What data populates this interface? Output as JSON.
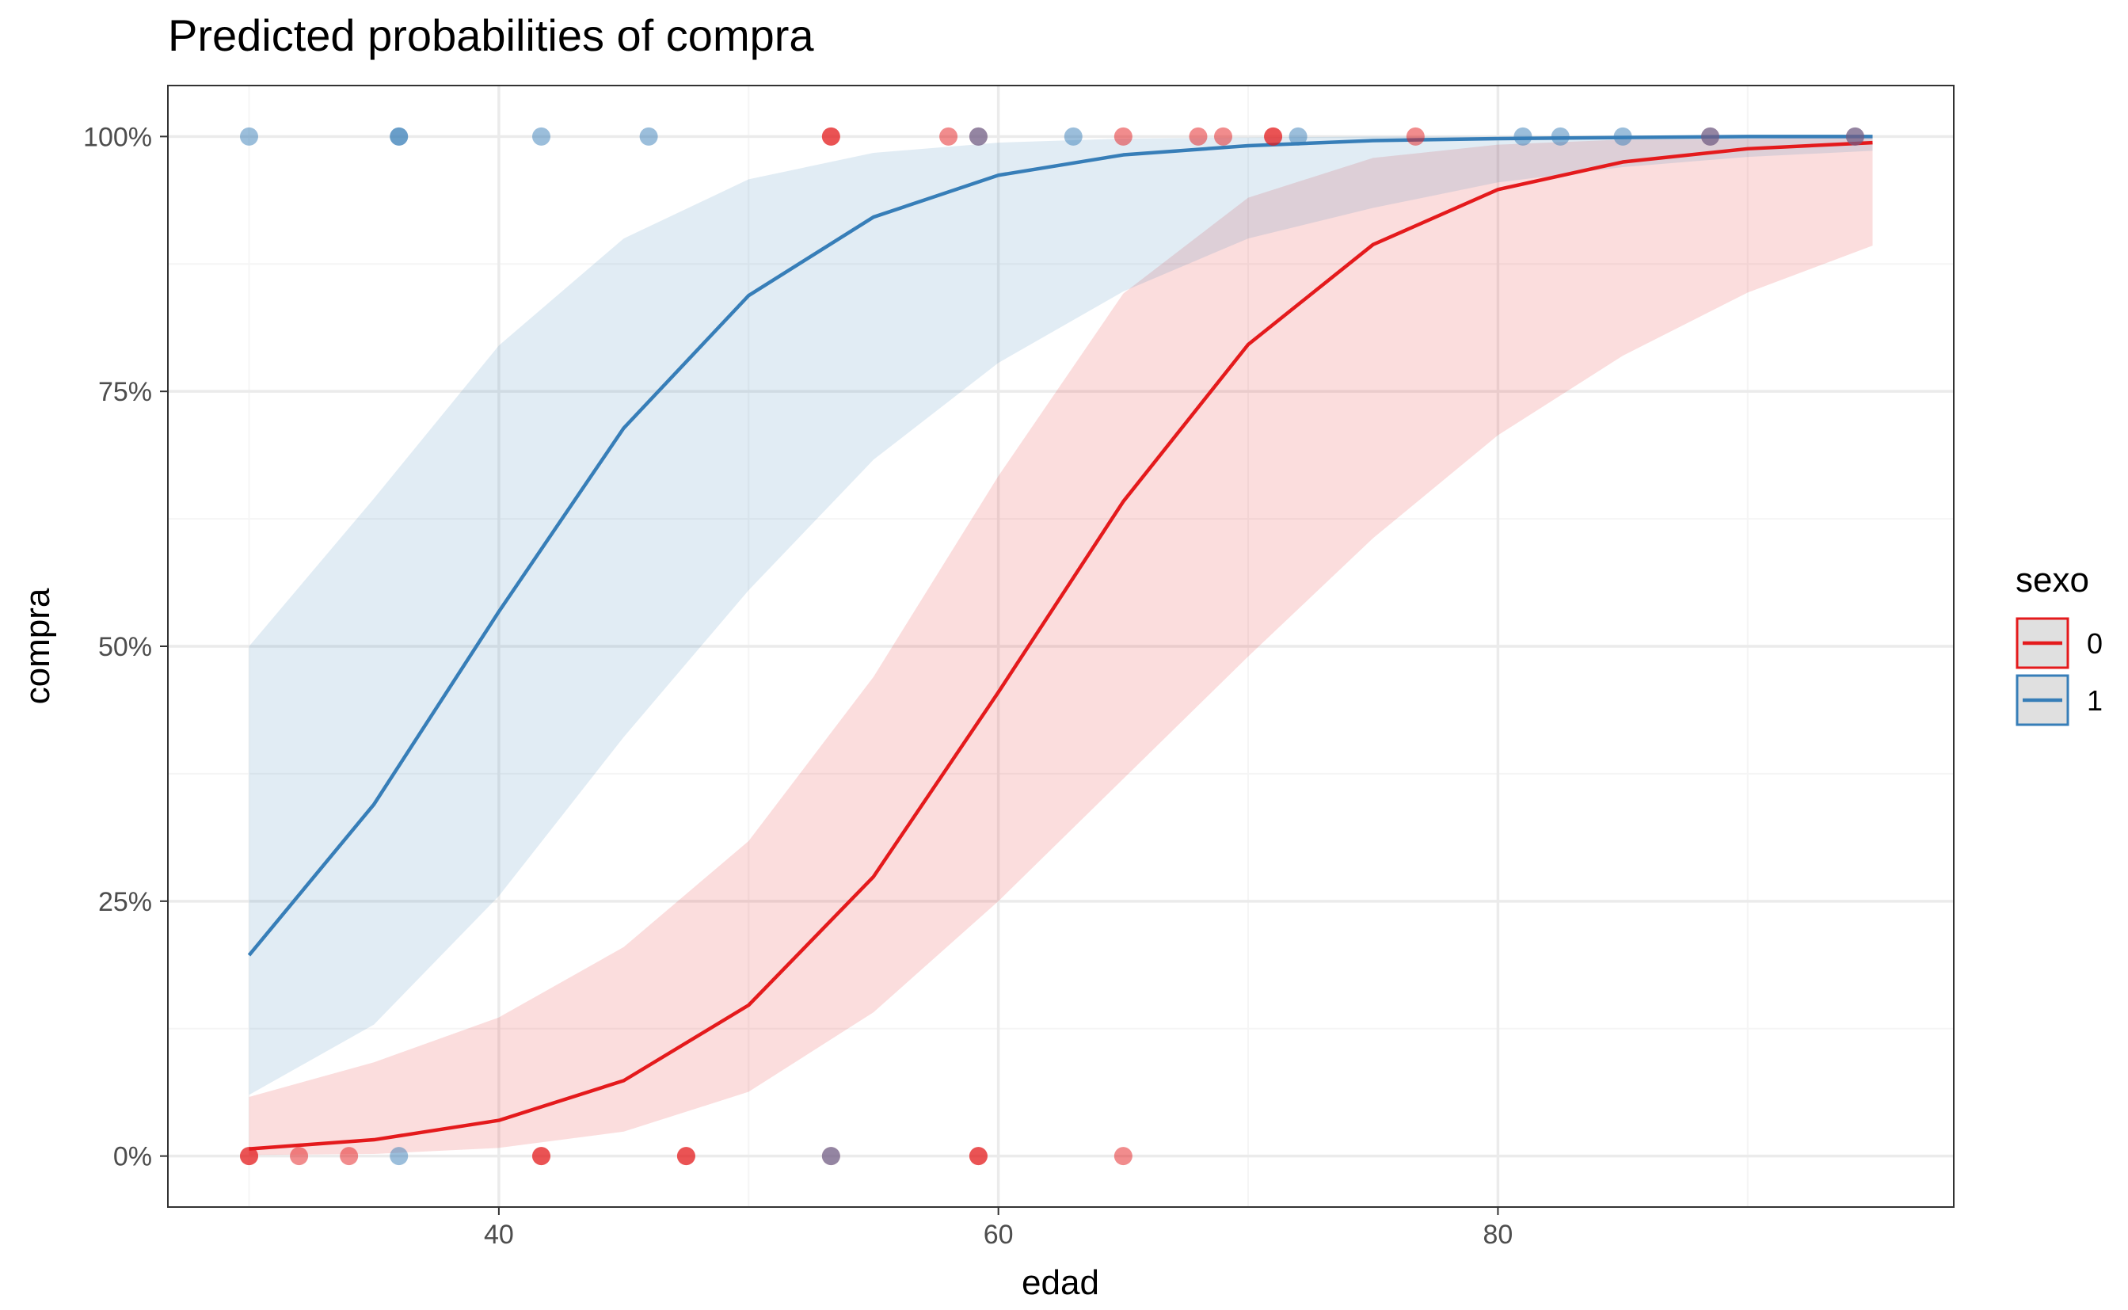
{
  "chart_data": {
    "type": "line",
    "title": "Predicted probabilities of compra",
    "xlabel": "edad",
    "ylabel": "compra",
    "xlim": [
      26.75,
      98.25
    ],
    "ylim": [
      -0.05,
      1.05
    ],
    "x_ticks": [
      40,
      60,
      80
    ],
    "x_tick_labels": [
      "40",
      "60",
      "80"
    ],
    "x_minor_ticks": [
      30,
      50,
      70,
      90
    ],
    "y_ticks": [
      0,
      0.25,
      0.5,
      0.75,
      1
    ],
    "y_tick_labels": [
      "0%",
      "25%",
      "50%",
      "75%",
      "100%"
    ],
    "y_minor_ticks": [
      0.125,
      0.375,
      0.625,
      0.875
    ],
    "grid": true,
    "legend": {
      "title": "sexo",
      "position": "right"
    },
    "series": [
      {
        "name": "0",
        "color": "#e41a1c",
        "x": [
          30,
          35,
          40,
          45,
          50,
          55,
          60,
          65,
          70,
          75,
          80,
          85,
          90,
          95
        ],
        "values": [
          0.007,
          0.016,
          0.035,
          0.074,
          0.148,
          0.274,
          0.455,
          0.642,
          0.796,
          0.894,
          0.948,
          0.975,
          0.988,
          0.994
        ],
        "ci_low": [
          0.001,
          0.002,
          0.008,
          0.024,
          0.063,
          0.141,
          0.25,
          0.37,
          0.49,
          0.606,
          0.707,
          0.785,
          0.847,
          0.893
        ],
        "ci_high": [
          0.058,
          0.092,
          0.136,
          0.205,
          0.309,
          0.47,
          0.667,
          0.846,
          0.94,
          0.979,
          0.992,
          0.997,
          0.998,
          0.999
        ]
      },
      {
        "name": "1",
        "color": "#377eb8",
        "x": [
          30,
          35,
          40,
          45,
          50,
          55,
          60,
          65,
          70,
          75,
          80,
          85,
          90,
          95
        ],
        "values": [
          0.197,
          0.345,
          0.534,
          0.714,
          0.844,
          0.921,
          0.962,
          0.982,
          0.991,
          0.996,
          0.998,
          0.999,
          1.0,
          1.0
        ],
        "ci_low": [
          0.06,
          0.129,
          0.255,
          0.411,
          0.555,
          0.683,
          0.778,
          0.848,
          0.9,
          0.93,
          0.955,
          0.97,
          0.98,
          0.986
        ],
        "ci_high": [
          0.5,
          0.645,
          0.795,
          0.9,
          0.958,
          0.984,
          0.994,
          0.998,
          0.999,
          1.0,
          1.0,
          1.0,
          1.0,
          1.0
        ]
      }
    ],
    "points": [
      {
        "x": 30,
        "y": 1,
        "group": "1"
      },
      {
        "x": 36,
        "y": 1,
        "group": "1"
      },
      {
        "x": 36,
        "y": 1,
        "group": "1"
      },
      {
        "x": 41.7,
        "y": 1,
        "group": "1"
      },
      {
        "x": 46,
        "y": 1,
        "group": "1"
      },
      {
        "x": 53.3,
        "y": 1,
        "group": "0"
      },
      {
        "x": 53.3,
        "y": 1,
        "group": "0"
      },
      {
        "x": 58,
        "y": 1,
        "group": "0"
      },
      {
        "x": 59.2,
        "y": 1,
        "group": "0"
      },
      {
        "x": 59.2,
        "y": 1,
        "group": "1"
      },
      {
        "x": 63,
        "y": 1,
        "group": "1"
      },
      {
        "x": 65,
        "y": 1,
        "group": "0"
      },
      {
        "x": 68,
        "y": 1,
        "group": "0"
      },
      {
        "x": 69,
        "y": 1,
        "group": "0"
      },
      {
        "x": 71,
        "y": 1,
        "group": "0"
      },
      {
        "x": 71,
        "y": 1,
        "group": "0"
      },
      {
        "x": 72,
        "y": 1,
        "group": "1"
      },
      {
        "x": 76.7,
        "y": 1,
        "group": "0"
      },
      {
        "x": 81,
        "y": 1,
        "group": "1"
      },
      {
        "x": 82.5,
        "y": 1,
        "group": "1"
      },
      {
        "x": 85,
        "y": 1,
        "group": "1"
      },
      {
        "x": 88.5,
        "y": 1,
        "group": "0"
      },
      {
        "x": 88.5,
        "y": 1,
        "group": "1"
      },
      {
        "x": 94.3,
        "y": 1,
        "group": "0"
      },
      {
        "x": 94.3,
        "y": 1,
        "group": "1"
      },
      {
        "x": 30,
        "y": 0,
        "group": "0"
      },
      {
        "x": 30,
        "y": 0,
        "group": "0"
      },
      {
        "x": 32,
        "y": 0,
        "group": "0"
      },
      {
        "x": 34,
        "y": 0,
        "group": "0"
      },
      {
        "x": 36,
        "y": 0,
        "group": "1"
      },
      {
        "x": 41.7,
        "y": 0,
        "group": "0"
      },
      {
        "x": 41.7,
        "y": 0,
        "group": "0"
      },
      {
        "x": 47.5,
        "y": 0,
        "group": "0"
      },
      {
        "x": 47.5,
        "y": 0,
        "group": "0"
      },
      {
        "x": 53.3,
        "y": 0,
        "group": "0"
      },
      {
        "x": 53.3,
        "y": 0,
        "group": "1"
      },
      {
        "x": 59.2,
        "y": 0,
        "group": "0"
      },
      {
        "x": 59.2,
        "y": 0,
        "group": "0"
      },
      {
        "x": 65,
        "y": 0,
        "group": "0"
      }
    ],
    "colors": {
      "background": "#ffffff",
      "panel_border": "#333333",
      "grid_major": "#ebebeb",
      "grid_minor": "#f5f5f5",
      "band_0": "#e41a1c",
      "band_1": "#377eb8",
      "legend_key_bg": "#e0e0e0"
    }
  }
}
